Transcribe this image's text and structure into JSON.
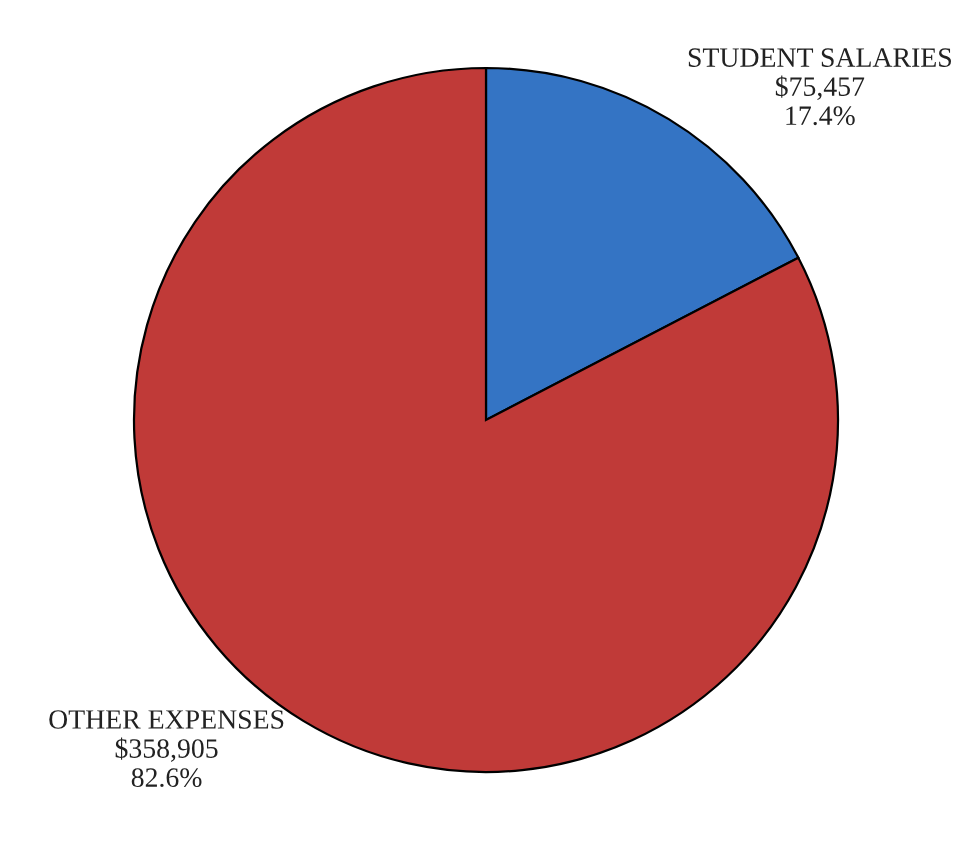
{
  "chart_data": {
    "type": "pie",
    "categories": [
      "STUDENT SALARIES",
      "OTHER EXPENSES"
    ],
    "values": [
      75457,
      358905
    ],
    "colors": [
      "#3474c4",
      "#c03a38"
    ],
    "value_labels": [
      "$75,457\n17.4%",
      "$358,905\n82.6%"
    ]
  }
}
